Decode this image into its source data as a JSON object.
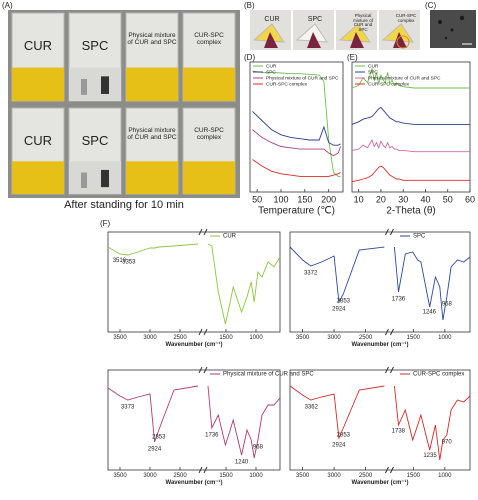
{
  "photos": {
    "A": {
      "label": "(A)",
      "vials": [
        "CUR",
        "SPC",
        "Physical mixture of CUR and SPC",
        "CUR-SPC complex"
      ],
      "caption": "After standing for 10 min"
    },
    "B": {
      "label": "(B)",
      "samples": [
        "CUR",
        "SPC",
        "Physical mixture of CUR and SPC",
        "CUR-SPC complex"
      ]
    },
    "C": {
      "label": "(C)"
    }
  },
  "chart_data": [
    {
      "type": "line",
      "label": "(D)",
      "xlabel": "Temperature (℃)",
      "legend": "upper left",
      "x": [
        40,
        60,
        80,
        100,
        120,
        140,
        160,
        180,
        190,
        200,
        210,
        220,
        225
      ],
      "xlim": [
        35,
        230
      ],
      "xticks": [
        50,
        100,
        150,
        200
      ],
      "ylim": [
        0,
        100
      ],
      "series": [
        {
          "name": "CUR",
          "color": "#6cc04a",
          "values": [
            93,
            92,
            92,
            91.5,
            91,
            91,
            90.5,
            90,
            85,
            40,
            15,
            12,
            12
          ]
        },
        {
          "name": "SPC",
          "color": "#2b3f8f",
          "values": [
            62,
            55,
            48,
            44,
            42,
            41,
            40,
            40,
            50,
            38,
            36,
            36,
            37
          ]
        },
        {
          "name": "Physical mixture of CUR and SPC",
          "color": "#b0407a",
          "values": [
            48,
            42,
            38,
            35,
            34,
            33,
            33,
            33,
            33,
            30,
            28,
            30,
            35
          ]
        },
        {
          "name": "CUR-SPC complex",
          "color": "#e02828",
          "values": [
            25,
            20,
            16,
            14,
            13,
            12,
            12,
            12,
            12,
            12,
            13,
            14,
            15
          ]
        }
      ]
    },
    {
      "type": "line",
      "label": "(E)",
      "xlabel": "2-Theta (θ)",
      "legend": "upper left",
      "x": [
        7,
        10,
        12,
        14,
        16,
        17,
        18,
        19,
        20,
        21,
        22,
        23,
        24,
        25,
        26,
        27,
        28,
        30,
        35,
        40,
        45,
        50,
        55,
        60
      ],
      "xlim": [
        7,
        60
      ],
      "xticks": [
        10,
        20,
        30,
        40,
        50,
        60
      ],
      "ylim": [
        0,
        100
      ],
      "series": [
        {
          "name": "CUR",
          "color": "#6cc04a",
          "values": [
            80,
            82,
            88,
            84,
            95,
            86,
            92,
            83,
            90,
            86,
            84,
            92,
            83,
            86,
            82,
            84,
            82,
            81,
            80,
            80,
            80,
            80,
            80,
            80
          ]
        },
        {
          "name": "SPC",
          "color": "#2b3f8f",
          "values": [
            52,
            54,
            56,
            57,
            58,
            60,
            62,
            64,
            65,
            63,
            61,
            59,
            57,
            56,
            55,
            54,
            54,
            53,
            52,
            52,
            52,
            52,
            52,
            52
          ]
        },
        {
          "name": "Physical mixture of CUR and SPC",
          "color": "#d36aa8",
          "values": [
            32,
            33,
            36,
            34,
            40,
            35,
            38,
            34,
            39,
            36,
            34,
            38,
            34,
            35,
            33,
            33,
            32,
            32,
            31,
            31,
            31,
            31,
            31,
            31
          ]
        },
        {
          "name": "CUR-SPC complex",
          "color": "#e02828",
          "values": [
            8,
            9,
            10,
            11,
            13,
            15,
            17,
            19,
            20,
            19,
            17,
            15,
            13,
            12,
            11,
            10,
            10,
            9,
            9,
            9,
            9,
            9,
            9,
            9
          ]
        }
      ]
    },
    {
      "type": "line",
      "label": "(F)",
      "xlabel": "Wavenumber (cm⁻¹)",
      "legend": "upper right",
      "x": [
        3700,
        3500,
        3370,
        3200,
        3000,
        2924,
        2853,
        2600,
        2200,
        2000,
        1800,
        1736,
        1628,
        1510,
        1430,
        1380,
        1240,
        1150,
        1080,
        1030,
        968,
        900,
        800,
        700,
        600
      ],
      "xlim": [
        3700,
        600
      ],
      "xbreak": [
        2200,
        1800
      ],
      "xticks": [
        3500,
        3000,
        2500,
        1500,
        1000
      ],
      "ylim": [
        0,
        100
      ],
      "peaks": [
        3510,
        3353
      ],
      "series": [
        {
          "name": "CUR",
          "color": "#8cc63f",
          "values": [
            85,
            78,
            77,
            80,
            84,
            84,
            85,
            86,
            88,
            null,
            88,
            86,
            40,
            8,
            30,
            45,
            20,
            35,
            50,
            30,
            60,
            55,
            70,
            65,
            75
          ]
        }
      ]
    },
    {
      "type": "line",
      "xlabel": "Wavenumber (cm⁻¹)",
      "legend": "upper right",
      "x": [
        3700,
        3500,
        3370,
        3200,
        3000,
        2924,
        2853,
        2600,
        2200,
        2000,
        1800,
        1736,
        1628,
        1510,
        1430,
        1380,
        1240,
        1150,
        1080,
        1030,
        968,
        900,
        800,
        700,
        600
      ],
      "xlim": [
        3700,
        600
      ],
      "xbreak": [
        2200,
        1800
      ],
      "xticks": [
        3500,
        3000,
        2500,
        1500,
        1000
      ],
      "ylim": [
        0,
        100
      ],
      "peaks": [
        3372,
        2924,
        2853,
        1736,
        1246,
        968
      ],
      "series": [
        {
          "name": "SPC",
          "color": "#2b4a9a",
          "values": [
            85,
            72,
            66,
            70,
            76,
            30,
            38,
            82,
            85,
            null,
            85,
            40,
            78,
            80,
            72,
            70,
            25,
            55,
            45,
            12,
            35,
            65,
            72,
            70,
            75
          ]
        }
      ]
    },
    {
      "type": "line",
      "xlabel": "Wavenumber (cm⁻¹)",
      "legend": "upper right",
      "x": [
        3700,
        3500,
        3370,
        3200,
        3000,
        2924,
        2853,
        2600,
        2200,
        2000,
        1800,
        1736,
        1628,
        1510,
        1430,
        1380,
        1240,
        1150,
        1080,
        1030,
        968,
        900,
        800,
        700,
        600
      ],
      "xlim": [
        3700,
        600
      ],
      "xbreak": [
        2200,
        1800
      ],
      "xticks": [
        3500,
        3000,
        2500,
        1500,
        1000
      ],
      "ylim": [
        0,
        100
      ],
      "peaks": [
        3373,
        2924,
        2853,
        1736,
        1240,
        968
      ],
      "series": [
        {
          "name": "Physical mixture of CUR and SPC",
          "color": "#b03a74",
          "values": [
            82,
            74,
            70,
            73,
            76,
            28,
            40,
            80,
            84,
            null,
            84,
            42,
            55,
            25,
            40,
            50,
            15,
            40,
            30,
            12,
            30,
            55,
            65,
            65,
            72
          ]
        }
      ]
    },
    {
      "type": "line",
      "xlabel": "Wavenumber (cm⁻¹)",
      "legend": "upper right",
      "x": [
        3700,
        3500,
        3370,
        3200,
        3000,
        2924,
        2853,
        2600,
        2200,
        2000,
        1800,
        1736,
        1628,
        1510,
        1430,
        1380,
        1240,
        1150,
        1080,
        1030,
        968,
        900,
        800,
        700,
        600
      ],
      "xlim": [
        3700,
        600
      ],
      "xbreak": [
        2200,
        1800
      ],
      "xticks": [
        3500,
        3000,
        2500,
        1500,
        1000
      ],
      "ylim": [
        0,
        100
      ],
      "peaks": [
        3362,
        2924,
        2853,
        1738,
        1235,
        970
      ],
      "series": [
        {
          "name": "CUR-SPC complex",
          "color": "#d42a2a",
          "values": [
            84,
            75,
            70,
            73,
            76,
            32,
            42,
            80,
            84,
            null,
            84,
            45,
            60,
            30,
            45,
            55,
            20,
            45,
            10,
            30,
            35,
            60,
            70,
            68,
            74
          ]
        }
      ]
    }
  ]
}
